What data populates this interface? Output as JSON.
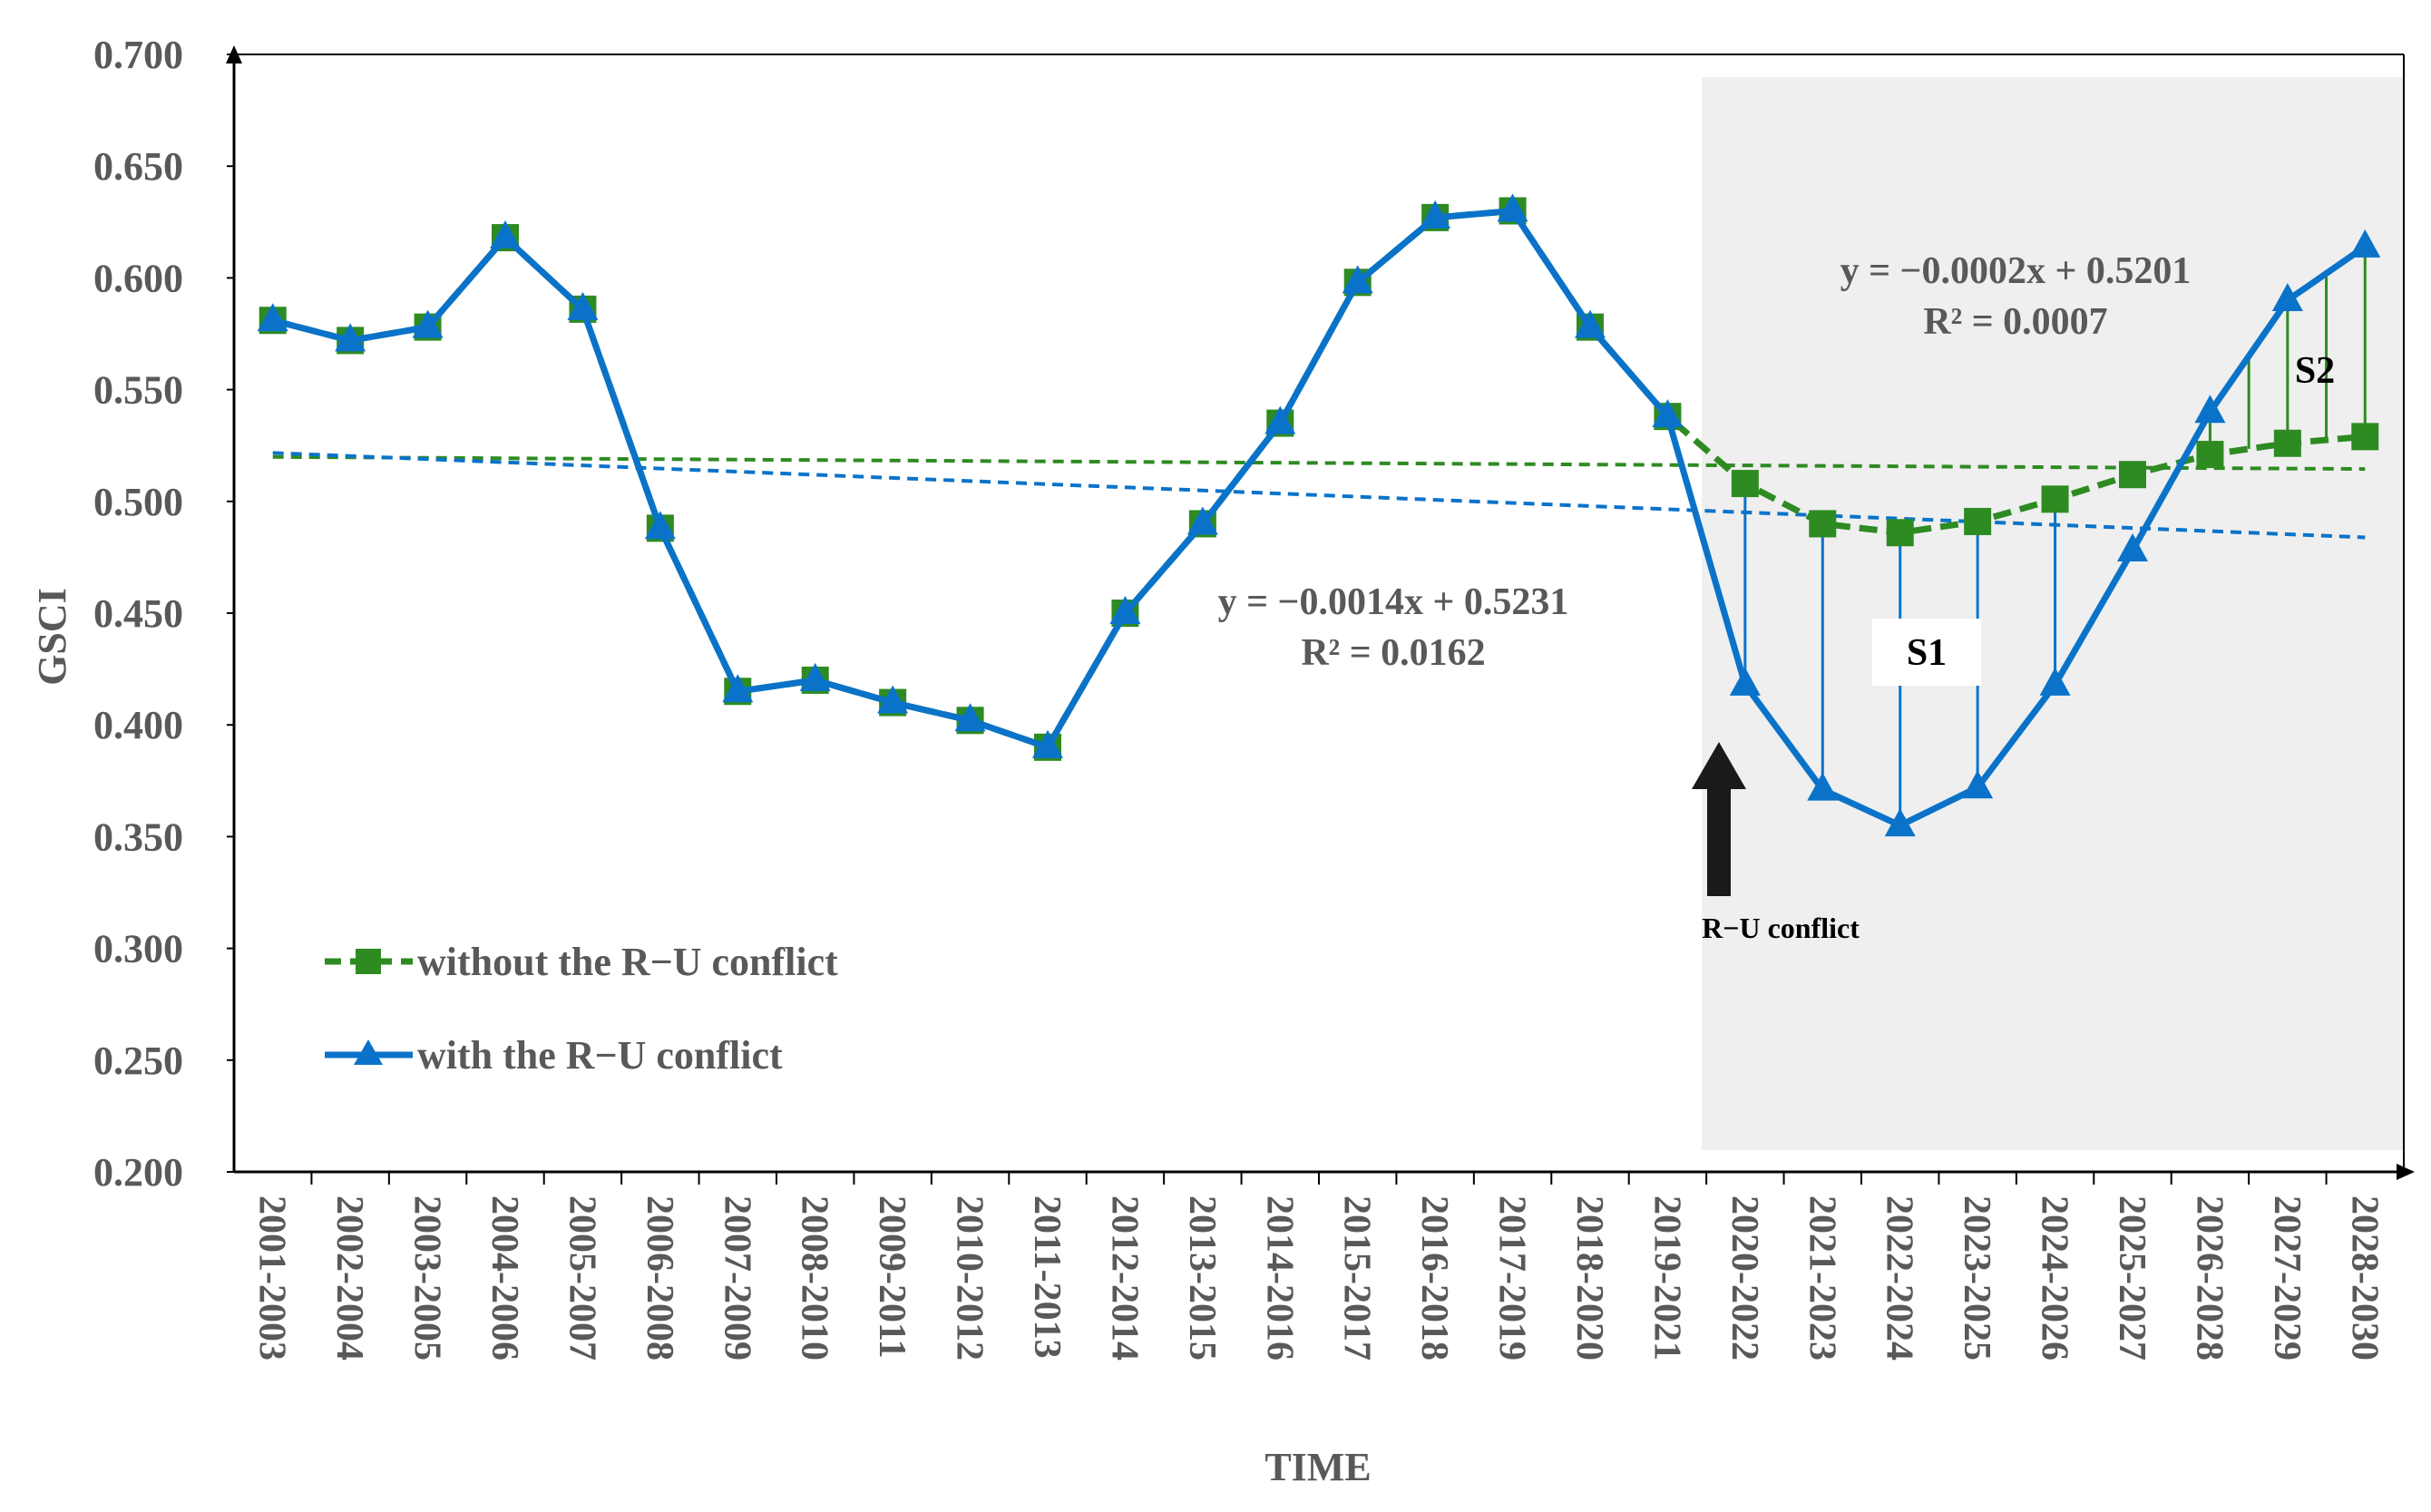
{
  "colors": {
    "green": "#2E8B22",
    "blue": "#0A73C9",
    "shade": "#EFEFEF",
    "axis": "#000000",
    "text": "#595959"
  },
  "chart_data": {
    "type": "line",
    "xlabel": "TIME",
    "ylabel": "GSCI",
    "ylim": [
      0.2,
      0.7
    ],
    "y_ticks": [
      "0.700",
      "0.650",
      "0.600",
      "0.550",
      "0.500",
      "0.450",
      "0.400",
      "0.350",
      "0.300",
      "0.250",
      "0.200"
    ],
    "y_tick_values": [
      0.7,
      0.65,
      0.6,
      0.55,
      0.5,
      0.45,
      0.4,
      0.35,
      0.3,
      0.25,
      0.2
    ],
    "categories": [
      "2001-2003",
      "2002-2004",
      "2003-2005",
      "2004-2006",
      "2005-2007",
      "2006-2008",
      "2007-2009",
      "2008-2010",
      "2009-2011",
      "2010-2012",
      "2011-2013",
      "2012-2014",
      "2013-2015",
      "2014-2016",
      "2015-2017",
      "2016-2018",
      "2017-2019",
      "2018-2020",
      "2019-2021",
      "2020-2022",
      "2021-2023",
      "2022-2024",
      "2023-2025",
      "2024-2026",
      "2025-2027",
      "2026-2028",
      "2027-2029",
      "2028-2030"
    ],
    "series": [
      {
        "name": "without the R−U conflict",
        "color": "#2E8B22",
        "style": "dashed",
        "marker": "square",
        "values": [
          0.581,
          0.572,
          0.578,
          0.618,
          0.586,
          0.488,
          0.415,
          0.42,
          0.41,
          0.402,
          0.39,
          0.45,
          0.49,
          0.535,
          0.598,
          0.627,
          0.63,
          0.578,
          0.538,
          0.508,
          0.49,
          0.486,
          0.491,
          0.501,
          0.512,
          0.521,
          0.526,
          0.529
        ]
      },
      {
        "name": "with the R−U conflict",
        "color": "#0A73C9",
        "style": "solid",
        "marker": "triangle",
        "values": [
          0.581,
          0.572,
          0.578,
          0.618,
          0.586,
          0.488,
          0.415,
          0.42,
          0.41,
          0.402,
          0.39,
          0.45,
          0.49,
          0.535,
          0.598,
          0.627,
          0.63,
          0.578,
          0.538,
          0.418,
          0.371,
          0.355,
          0.372,
          0.418,
          0.478,
          0.54,
          0.59,
          0.614
        ]
      }
    ],
    "trendlines": [
      {
        "series": "without the R−U conflict",
        "equation": "y = −0.0002x + 0.5201",
        "r2": "R² = 0.0007",
        "slope": -0.0002,
        "intercept": 0.5201,
        "color": "#2E8B22"
      },
      {
        "series": "with the R−U conflict",
        "equation": "y = −0.0014x + 0.5231",
        "r2": "R² = 0.0162",
        "slope": -0.0014,
        "intercept": 0.5231,
        "color": "#0A73C9"
      }
    ],
    "shaded_region": {
      "from": "2020-2022",
      "to": "2028-2030"
    },
    "annotations": {
      "arrow_label": "R−U conflict",
      "arrow_at": "2020-2022",
      "s1_label": "S1",
      "s2_label": "S2"
    },
    "legend_position": "bottom-left"
  }
}
